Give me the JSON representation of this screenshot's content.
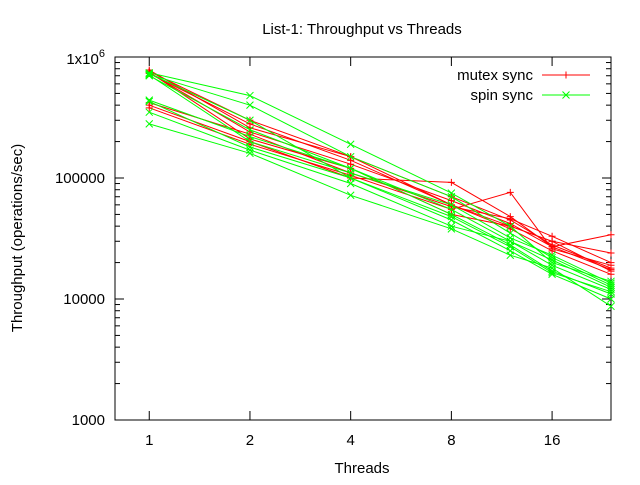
{
  "chart_data": {
    "type": "line",
    "title": "List-1: Throughput vs Threads",
    "xlabel": "Threads",
    "ylabel": "Throughput (operations/sec)",
    "x_scale": "log2",
    "y_scale": "log10",
    "xlim": [
      0.79,
      24
    ],
    "ylim": [
      1000,
      1000000
    ],
    "x_ticks": [
      1,
      2,
      4,
      8,
      16
    ],
    "x_tick_labels": [
      "1",
      "2",
      "4",
      "8",
      "16"
    ],
    "y_ticks": [
      1000,
      10000,
      100000,
      1000000
    ],
    "y_tick_labels": [
      "1000",
      "10000",
      "100000",
      "1x10^6"
    ],
    "legend_position": "top-right",
    "x": [
      1,
      2,
      4,
      8,
      12,
      16,
      24
    ],
    "series": [
      {
        "name": "mutex sync",
        "color": "#ff0000",
        "marker": "plus",
        "runs": [
          [
            780000,
            260000,
            150000,
            70000,
            45000,
            28000,
            18000
          ],
          [
            760000,
            300000,
            150000,
            60000,
            40000,
            30000,
            17000
          ],
          [
            740000,
            240000,
            130000,
            65000,
            42000,
            27000,
            17500
          ],
          [
            730000,
            280000,
            140000,
            60000,
            38000,
            25000,
            16000
          ],
          [
            420000,
            230000,
            110000,
            58000,
            46000,
            33000,
            20000
          ],
          [
            380000,
            190000,
            105000,
            55000,
            76000,
            26000,
            19000
          ],
          [
            400000,
            200000,
            100000,
            92000,
            48000,
            27000,
            34000
          ],
          [
            750000,
            210000,
            120000,
            50000,
            40000,
            30000,
            24000
          ]
        ]
      },
      {
        "name": "spin sync",
        "color": "#00ff00",
        "marker": "cross",
        "runs": [
          [
            740000,
            480000,
            190000,
            75000,
            40000,
            20000,
            14000
          ],
          [
            720000,
            400000,
            150000,
            70000,
            35000,
            22000,
            13000
          ],
          [
            700000,
            250000,
            120000,
            55000,
            30000,
            19000,
            12000
          ],
          [
            440000,
            220000,
            120000,
            50000,
            28000,
            17000,
            11000
          ],
          [
            430000,
            180000,
            100000,
            45000,
            25000,
            16000,
            10000
          ],
          [
            350000,
            170000,
            90000,
            40000,
            30000,
            21000,
            12500
          ],
          [
            280000,
            160000,
            72000,
            38000,
            23000,
            18000,
            8700
          ],
          [
            710000,
            200000,
            110000,
            60000,
            32000,
            23000,
            13500
          ],
          [
            730000,
            300000,
            100000,
            48000,
            27000,
            16500,
            11500
          ]
        ]
      }
    ]
  }
}
